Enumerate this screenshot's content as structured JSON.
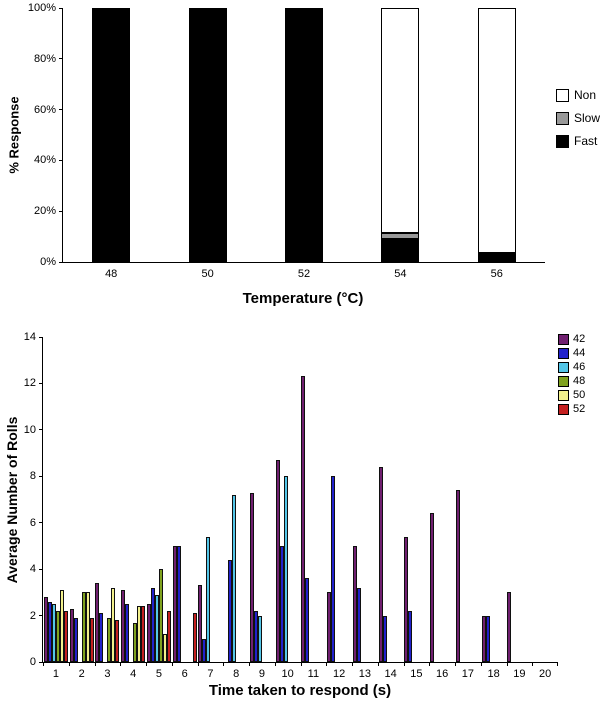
{
  "chart_data": [
    {
      "type": "bar",
      "variant": "stacked",
      "title": "",
      "xlabel": "Temperature (°C)",
      "ylabel": "% Response",
      "categories": [
        "48",
        "50",
        "52",
        "54",
        "56"
      ],
      "ytick_labels": [
        "0%",
        "20%",
        "40%",
        "60%",
        "80%",
        "100%"
      ],
      "ylim": [
        0,
        100
      ],
      "grid": false,
      "legend_position": "right",
      "legend": [
        {
          "label": "Non",
          "color": "#FFFFFF"
        },
        {
          "label": "Slow",
          "color": "#999999"
        },
        {
          "label": "Fast",
          "color": "#000000"
        }
      ],
      "series": [
        {
          "name": "Fast",
          "color": "#000000",
          "values": [
            100,
            100,
            100,
            9,
            3
          ]
        },
        {
          "name": "Slow",
          "color": "#999999",
          "values": [
            0,
            0,
            0,
            2.5,
            0.5
          ]
        },
        {
          "name": "Non",
          "color": "#FFFFFF",
          "values": [
            0,
            0,
            0,
            88.5,
            96.5
          ]
        }
      ]
    },
    {
      "type": "bar",
      "variant": "grouped",
      "title": "",
      "xlabel": "Time taken to respond (s)",
      "ylabel": "Average Number of Rolls",
      "categories": [
        "1",
        "2",
        "3",
        "4",
        "5",
        "6",
        "7",
        "8",
        "9",
        "10",
        "11",
        "12",
        "13",
        "14",
        "15",
        "16",
        "17",
        "18",
        "19",
        "20"
      ],
      "ytick_labels": [
        "0",
        "2",
        "4",
        "6",
        "8",
        "10",
        "12",
        "14"
      ],
      "ylim": [
        0,
        14
      ],
      "grid": false,
      "legend_position": "top-right",
      "series": [
        {
          "name": "42",
          "color": "#702070",
          "values": [
            2.8,
            2.3,
            3.4,
            3.1,
            2.5,
            5.0,
            3.3,
            0,
            7.3,
            8.7,
            12.3,
            3.0,
            5.0,
            8.4,
            5.4,
            6.4,
            7.4,
            2.0,
            3.0,
            0
          ]
        },
        {
          "name": "44",
          "color": "#2121CC",
          "values": [
            2.6,
            1.9,
            2.1,
            2.5,
            3.2,
            5.0,
            1.0,
            4.4,
            2.2,
            5.0,
            3.6,
            8.0,
            3.2,
            2.0,
            2.2,
            0,
            0,
            2.0,
            0,
            0
          ]
        },
        {
          "name": "46",
          "color": "#54C6E8",
          "values": [
            2.5,
            0,
            0,
            0,
            2.9,
            0,
            5.4,
            7.2,
            2.0,
            8.0,
            0,
            0,
            0,
            0,
            0,
            0,
            0,
            0,
            0,
            0
          ]
        },
        {
          "name": "48",
          "color": "#7FA21F",
          "values": [
            2.2,
            3.0,
            1.9,
            1.7,
            4.0,
            0,
            0,
            0,
            0,
            0,
            0,
            0,
            0,
            0,
            0,
            0,
            0,
            0,
            0,
            0
          ]
        },
        {
          "name": "50",
          "color": "#F2F08C",
          "values": [
            3.1,
            3.0,
            3.2,
            2.4,
            1.2,
            0,
            0,
            0,
            0,
            0,
            0,
            0,
            0,
            0,
            0,
            0,
            0,
            0,
            0,
            0
          ]
        },
        {
          "name": "52",
          "color": "#C42020",
          "values": [
            2.2,
            1.9,
            1.8,
            2.4,
            2.2,
            2.1,
            0,
            0,
            0,
            0,
            0,
            0,
            0,
            0,
            0,
            0,
            0,
            0,
            0,
            0
          ]
        }
      ]
    }
  ]
}
